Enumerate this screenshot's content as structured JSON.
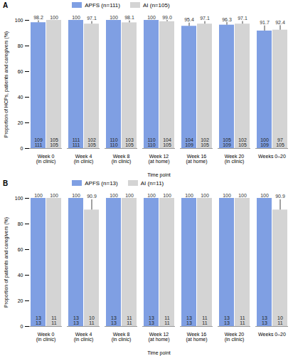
{
  "chart_data": [
    {
      "type": "bar",
      "title": "A",
      "xlabel": "Time point",
      "ylabel": "Proportion of HCPs, patients and caregivers (%)",
      "categories": [
        "Week 0\n(in clinic)",
        "Week 4\n(in clinic)",
        "Week 8\n(in clinic)",
        "Week 12\n(at home)",
        "Week 16\n(at home)",
        "Week 20\n(in clinic)",
        "Weeks 0–20"
      ],
      "series": [
        {
          "name": "APFS (n=111)",
          "color": "#7f9fe3",
          "values": [
            98.2,
            100,
            100,
            100,
            95.4,
            96.3,
            91.7
          ],
          "errors": [
            1.5,
            0,
            0,
            0,
            2.5,
            2,
            4
          ],
          "counts": [
            109,
            111,
            110,
            110,
            104,
            105,
            100
          ],
          "totals": [
            111,
            111,
            110,
            110,
            109,
            109,
            109
          ]
        },
        {
          "name": "AI (n=105)",
          "color": "#d4d4d4",
          "values": [
            100,
            97.1,
            98.1,
            99.0,
            97.1,
            97.1,
            92.4
          ],
          "value_labels": [
            "100",
            "97.1",
            "98.1",
            "99.0",
            "97.1",
            "97.1",
            "92.4"
          ],
          "errors": [
            0,
            2,
            1.5,
            1,
            2,
            2,
            3.5
          ],
          "counts": [
            105,
            102,
            103,
            104,
            102,
            102,
            97
          ],
          "totals": [
            105,
            105,
            105,
            105,
            105,
            105,
            105
          ]
        }
      ],
      "ylim": [
        0,
        100
      ],
      "yticks": [
        0,
        20,
        40,
        60,
        80,
        100
      ],
      "legend": "top",
      "data_labels": true
    },
    {
      "type": "bar",
      "title": "B",
      "xlabel": "Time point",
      "ylabel": "Proportion of patients and caregivers (%)",
      "categories": [
        "Week 0\n(in clinic)",
        "Week 4\n(in clinic)",
        "Week 8\n(in clinic)",
        "Week 12\n(at home)",
        "Week 16\n(at home)",
        "Week 20\n(in clinic)",
        "Weeks 0–20"
      ],
      "series": [
        {
          "name": "APFS (n=13)",
          "color": "#7f9fe3",
          "values": [
            100,
            100,
            100,
            100,
            100,
            100,
            100
          ],
          "errors": [
            0,
            0,
            0,
            0,
            0,
            0,
            0
          ],
          "counts": [
            13,
            13,
            13,
            13,
            13,
            13,
            13
          ],
          "totals": [
            13,
            13,
            13,
            13,
            13,
            13,
            13
          ]
        },
        {
          "name": "AI (n=11)",
          "color": "#d4d4d4",
          "values": [
            100,
            90.9,
            100,
            100,
            100,
            100,
            90.9
          ],
          "errors": [
            0,
            8,
            0,
            0,
            0,
            0,
            8
          ],
          "counts": [
            11,
            10,
            11,
            11,
            11,
            11,
            10
          ],
          "totals": [
            11,
            11,
            11,
            11,
            11,
            11,
            11
          ]
        }
      ],
      "ylim": [
        0,
        100
      ],
      "yticks": [
        0,
        20,
        40,
        60,
        80,
        100
      ],
      "legend": "top",
      "data_labels": true
    }
  ]
}
